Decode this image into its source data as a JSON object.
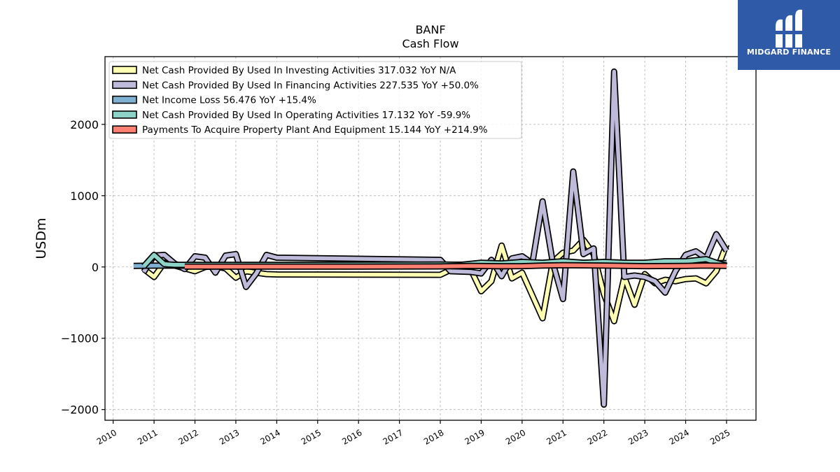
{
  "chart_data": {
    "type": "line",
    "title": "BANF",
    "subtitle": "Cash Flow",
    "ylabel": "USDm",
    "ylim": [
      -2150,
      2950
    ],
    "yticks": [
      -2000,
      -1000,
      0,
      1000,
      2000
    ],
    "yticklabels": [
      "−2000",
      "−1000",
      "0",
      "1000",
      "2000"
    ],
    "xlim": [
      2009.8,
      2025.72
    ],
    "xticks": [
      2010,
      2011,
      2012,
      2013,
      2014,
      2015,
      2016,
      2017,
      2018,
      2019,
      2020,
      2021,
      2022,
      2023,
      2024,
      2025
    ],
    "grid": true,
    "legend_position": "upper-left",
    "series": [
      {
        "name": "Net Cash Provided By Used In Investing Activities",
        "legend": "Net Cash Provided By Used In Investing Activities  317.032 YoY N/A",
        "color": "#ffffb3",
        "points": [
          [
            2010.75,
            -30
          ],
          [
            2011.0,
            -140
          ],
          [
            2011.25,
            60
          ],
          [
            2011.5,
            20
          ],
          [
            2011.75,
            -20
          ],
          [
            2012.0,
            -60
          ],
          [
            2012.25,
            0
          ],
          [
            2012.5,
            10
          ],
          [
            2012.75,
            -20
          ],
          [
            2013.0,
            -150
          ],
          [
            2013.25,
            -60
          ],
          [
            2013.75,
            -100
          ],
          [
            2014.0,
            -105
          ],
          [
            2018.0,
            -110
          ],
          [
            2018.25,
            -40
          ],
          [
            2018.75,
            -40
          ],
          [
            2019.0,
            -340
          ],
          [
            2019.25,
            -200
          ],
          [
            2019.5,
            300
          ],
          [
            2019.75,
            -160
          ],
          [
            2020.0,
            -80
          ],
          [
            2020.5,
            -720
          ],
          [
            2020.75,
            70
          ],
          [
            2021.0,
            200
          ],
          [
            2021.25,
            230
          ],
          [
            2021.5,
            380
          ],
          [
            2021.75,
            180
          ],
          [
            2022.0,
            -380
          ],
          [
            2022.25,
            -760
          ],
          [
            2022.5,
            -140
          ],
          [
            2022.75,
            -530
          ],
          [
            2023.0,
            -100
          ],
          [
            2023.25,
            -230
          ],
          [
            2023.5,
            -180
          ],
          [
            2023.75,
            -200
          ],
          [
            2024.0,
            -170
          ],
          [
            2024.25,
            -160
          ],
          [
            2024.5,
            -230
          ],
          [
            2024.75,
            -60
          ],
          [
            2025.0,
            317
          ]
        ]
      },
      {
        "name": "Net Cash Provided By Used In Financing Activities",
        "legend": "Net Cash Provided By Used In Financing Activities  227.535 YoY +50.0%",
        "color": "#bebada",
        "points": [
          [
            2010.75,
            -70
          ],
          [
            2011.0,
            160
          ],
          [
            2011.25,
            170
          ],
          [
            2011.5,
            50
          ],
          [
            2011.75,
            -30
          ],
          [
            2012.0,
            150
          ],
          [
            2012.25,
            130
          ],
          [
            2012.5,
            -80
          ],
          [
            2012.75,
            160
          ],
          [
            2013.0,
            180
          ],
          [
            2013.25,
            -280
          ],
          [
            2013.5,
            -90
          ],
          [
            2013.75,
            170
          ],
          [
            2014.0,
            130
          ],
          [
            2018.0,
            100
          ],
          [
            2018.25,
            -60
          ],
          [
            2018.75,
            -70
          ],
          [
            2019.0,
            -90
          ],
          [
            2019.25,
            100
          ],
          [
            2019.5,
            -130
          ],
          [
            2019.75,
            120
          ],
          [
            2020.0,
            150
          ],
          [
            2020.25,
            50
          ],
          [
            2020.5,
            920
          ],
          [
            2020.75,
            60
          ],
          [
            2021.0,
            -450
          ],
          [
            2021.25,
            1340
          ],
          [
            2021.5,
            180
          ],
          [
            2021.75,
            260
          ],
          [
            2022.0,
            -1930
          ],
          [
            2022.25,
            2740
          ],
          [
            2022.5,
            -140
          ],
          [
            2022.75,
            -120
          ],
          [
            2023.0,
            -140
          ],
          [
            2023.25,
            -200
          ],
          [
            2023.5,
            -360
          ],
          [
            2023.75,
            -60
          ],
          [
            2024.0,
            170
          ],
          [
            2024.25,
            220
          ],
          [
            2024.5,
            120
          ],
          [
            2024.75,
            460
          ],
          [
            2025.0,
            227
          ]
        ]
      },
      {
        "name": "Net Income Loss",
        "legend": "Net Income Loss  56.476 YoY +15.4%",
        "color": "#80b1d3",
        "points": [
          [
            2010.5,
            15
          ],
          [
            2011.0,
            18
          ],
          [
            2012.0,
            18
          ],
          [
            2013.0,
            22
          ],
          [
            2014.0,
            25
          ],
          [
            2018.0,
            30
          ],
          [
            2019.0,
            32
          ],
          [
            2020.0,
            30
          ],
          [
            2021.0,
            38
          ],
          [
            2022.0,
            42
          ],
          [
            2023.0,
            45
          ],
          [
            2024.0,
            49
          ],
          [
            2025.0,
            56
          ]
        ]
      },
      {
        "name": "Net Cash Provided By Used In Operating Activities",
        "legend": "Net Cash Provided By Used In Operating Activities  17.132 YoY -59.9%",
        "color": "#8dd3c7",
        "points": [
          [
            2010.75,
            10
          ],
          [
            2011.0,
            170
          ],
          [
            2011.25,
            40
          ],
          [
            2011.5,
            30
          ],
          [
            2012.0,
            30
          ],
          [
            2013.0,
            30
          ],
          [
            2014.0,
            30
          ],
          [
            2018.0,
            35
          ],
          [
            2018.5,
            30
          ],
          [
            2019.0,
            60
          ],
          [
            2019.5,
            50
          ],
          [
            2020.0,
            70
          ],
          [
            2020.5,
            60
          ],
          [
            2021.0,
            80
          ],
          [
            2021.5,
            60
          ],
          [
            2022.0,
            70
          ],
          [
            2022.5,
            60
          ],
          [
            2023.0,
            60
          ],
          [
            2023.5,
            80
          ],
          [
            2024.0,
            80
          ],
          [
            2024.5,
            110
          ],
          [
            2024.75,
            60
          ],
          [
            2025.0,
            17
          ]
        ]
      },
      {
        "name": "Payments To Acquire Property Plant And Equipment",
        "legend": "Payments To Acquire Property Plant And Equipment  15.144 YoY +214.9%",
        "color": "#fb8072",
        "points": [
          [
            2011.75,
            5
          ],
          [
            2013.0,
            5
          ],
          [
            2014.0,
            5
          ],
          [
            2016.0,
            5
          ],
          [
            2018.0,
            8
          ],
          [
            2018.75,
            15
          ],
          [
            2019.5,
            10
          ],
          [
            2020.0,
            12
          ],
          [
            2020.5,
            20
          ],
          [
            2021.0,
            25
          ],
          [
            2022.0,
            20
          ],
          [
            2023.0,
            12
          ],
          [
            2024.0,
            15
          ],
          [
            2024.5,
            20
          ],
          [
            2025.0,
            15
          ]
        ]
      }
    ]
  },
  "branding": {
    "name": "MIDGARD FINANCE",
    "logo_icon": "midgard-m-logo-icon"
  }
}
